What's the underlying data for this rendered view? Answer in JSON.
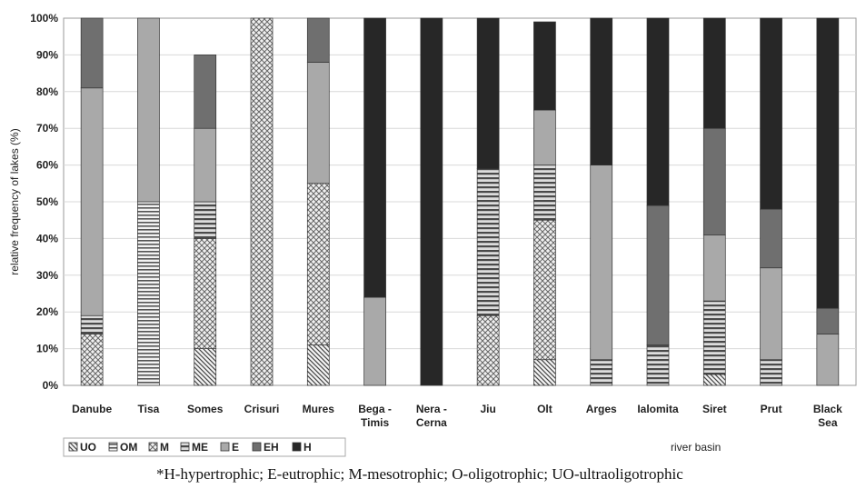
{
  "chart_data": {
    "type": "bar",
    "stacked": true,
    "normalized": true,
    "title": "",
    "xlabel": "river basin",
    "ylabel": "relative frequency of lakes (%)",
    "ylim": [
      0,
      100
    ],
    "yticks": [
      "0%",
      "10%",
      "20%",
      "30%",
      "40%",
      "50%",
      "60%",
      "70%",
      "80%",
      "90%",
      "100%"
    ],
    "categories": [
      [
        "Danube"
      ],
      [
        "Tisa"
      ],
      [
        "Somes"
      ],
      [
        "Crisuri"
      ],
      [
        "Mures"
      ],
      [
        "Bega -",
        "Timis"
      ],
      [
        "Nera -",
        "Cerna"
      ],
      [
        "Jiu"
      ],
      [
        "Olt"
      ],
      [
        "Arges"
      ],
      [
        "Ialomita"
      ],
      [
        "Siret"
      ],
      [
        "Prut"
      ],
      [
        "Black",
        "Sea"
      ]
    ],
    "legend_position": "bottom-left",
    "series": [
      {
        "name": "UO",
        "pattern": "diag",
        "values": [
          0,
          0,
          10,
          0,
          11,
          0,
          0,
          0,
          7,
          0,
          0,
          3,
          0,
          0
        ]
      },
      {
        "name": "OM",
        "pattern": "hlines",
        "values": [
          0,
          50,
          0,
          0,
          0,
          0,
          0,
          0,
          0,
          0,
          0,
          0,
          0,
          0
        ]
      },
      {
        "name": "M",
        "pattern": "cross",
        "values": [
          14,
          0,
          30,
          100,
          44,
          0,
          0,
          19,
          38,
          0,
          0,
          0,
          0,
          0
        ]
      },
      {
        "name": "ME",
        "pattern": "hlines-thick",
        "values": [
          5,
          0,
          10,
          0,
          0,
          0,
          0,
          40,
          15,
          7,
          11,
          20,
          7,
          0
        ]
      },
      {
        "name": "E",
        "pattern": "light",
        "values": [
          62,
          50,
          20,
          0,
          33,
          24,
          0,
          0,
          15,
          53,
          0,
          18,
          25,
          14
        ]
      },
      {
        "name": "EH",
        "pattern": "medium",
        "values": [
          19,
          0,
          20,
          0,
          12,
          0,
          0,
          0,
          0,
          0,
          38,
          29,
          16,
          7
        ]
      },
      {
        "name": "H",
        "pattern": "dark",
        "values": [
          0,
          0,
          0,
          0,
          0,
          76,
          100,
          41,
          24,
          40,
          51,
          30,
          52,
          79
        ]
      }
    ],
    "footnote": "*H-hypertrophic; E-eutrophic; M-mesotrophic; O-oligotrophic; UO-ultraoligotrophic"
  }
}
